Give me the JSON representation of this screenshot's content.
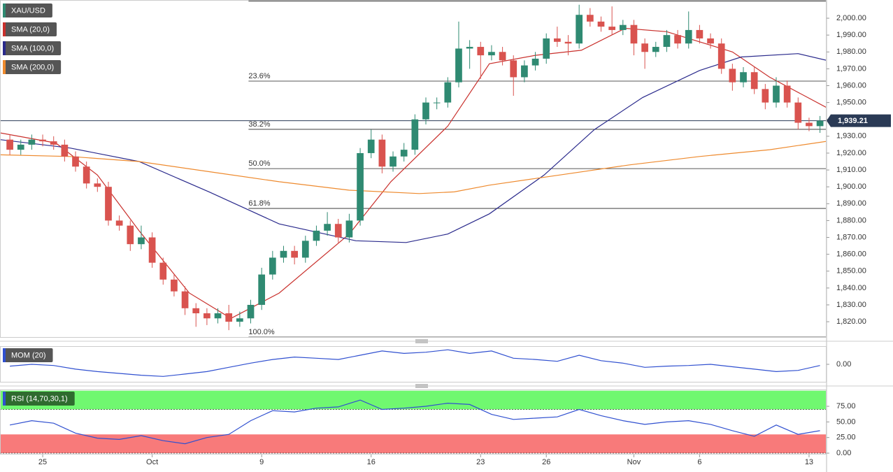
{
  "chart_data": [
    {
      "type": "candlestick",
      "name": "XAU/USD",
      "color_up": "#2f8a72",
      "color_down": "#d9534f",
      "xlim": [
        -1.95,
        35.8
      ],
      "ylim": [
        1810.5,
        2010.8
      ],
      "yticks": [
        {
          "value": 2000,
          "label": "2,000.00"
        },
        {
          "value": 1990,
          "label": "1,990.00"
        },
        {
          "value": 1980,
          "label": "1,980.00"
        },
        {
          "value": 1970,
          "label": "1,970.00"
        },
        {
          "value": 1960,
          "label": "1,960.00"
        },
        {
          "value": 1950,
          "label": "1,950.00"
        },
        {
          "value": 1940,
          "label": "1,940.00"
        },
        {
          "value": 1930,
          "label": "1,930.00"
        },
        {
          "value": 1920,
          "label": "1,920.00"
        },
        {
          "value": 1910,
          "label": "1,910.00"
        },
        {
          "value": 1900,
          "label": "1,900.00"
        },
        {
          "value": 1890,
          "label": "1,890.00"
        },
        {
          "value": 1880,
          "label": "1,880.00"
        },
        {
          "value": 1870,
          "label": "1,870.00"
        },
        {
          "value": 1860,
          "label": "1,860.00"
        },
        {
          "value": 1850,
          "label": "1,850.00"
        },
        {
          "value": 1840,
          "label": "1,840.00"
        },
        {
          "value": 1830,
          "label": "1,830.00"
        },
        {
          "value": 1820,
          "label": "1,820.00"
        }
      ],
      "x": [
        -1.5,
        -1,
        -0.5,
        0,
        0.5,
        1,
        1.5,
        2,
        2.5,
        3,
        3.5,
        4,
        4.5,
        5,
        5.5,
        6,
        6.5,
        7,
        7.5,
        8,
        8.5,
        9,
        9.5,
        10,
        10.5,
        11,
        11.5,
        12,
        12.5,
        13,
        13.5,
        14,
        14.5,
        15,
        15.5,
        16,
        16.5,
        17,
        17.5,
        18,
        18.5,
        19,
        19.5,
        20,
        20.5,
        21,
        21.5,
        22,
        22.5,
        23,
        23.5,
        24,
        24.5,
        25,
        25.5,
        26,
        26.5,
        27,
        27.5,
        28,
        28.5,
        29,
        29.5,
        30,
        30.5,
        31,
        31.5,
        32,
        32.5,
        33,
        33.5,
        34,
        34.5,
        35,
        35.5
      ],
      "ohlc": [
        [
          1928,
          1931,
          1919,
          1922
        ],
        [
          1922,
          1928,
          1919,
          1925
        ],
        [
          1925,
          1931,
          1922,
          1928
        ],
        [
          1928,
          1931,
          1924,
          1927
        ],
        [
          1927,
          1930,
          1922,
          1925
        ],
        [
          1925,
          1928,
          1915,
          1918
        ],
        [
          1918,
          1921,
          1909,
          1912
        ],
        [
          1912,
          1915,
          1899,
          1902
        ],
        [
          1902,
          1905,
          1897,
          1900
        ],
        [
          1900,
          1903,
          1877,
          1880
        ],
        [
          1880,
          1883,
          1874,
          1877
        ],
        [
          1877,
          1880,
          1862,
          1866
        ],
        [
          1866,
          1877,
          1863,
          1870
        ],
        [
          1870,
          1873,
          1852,
          1855
        ],
        [
          1855,
          1858,
          1842,
          1845
        ],
        [
          1845,
          1848,
          1835,
          1838
        ],
        [
          1838,
          1841,
          1824,
          1828
        ],
        [
          1828,
          1831,
          1817,
          1825
        ],
        [
          1825,
          1828,
          1818,
          1822
        ],
        [
          1822,
          1828,
          1819,
          1825
        ],
        [
          1825,
          1830,
          1815,
          1820
        ],
        [
          1820,
          1826,
          1817,
          1822
        ],
        [
          1822,
          1833,
          1819,
          1830
        ],
        [
          1830,
          1852,
          1827,
          1848
        ],
        [
          1848,
          1862,
          1845,
          1858
        ],
        [
          1858,
          1865,
          1855,
          1862
        ],
        [
          1862,
          1865,
          1854,
          1858
        ],
        [
          1858,
          1871,
          1855,
          1868
        ],
        [
          1868,
          1877,
          1865,
          1874
        ],
        [
          1874,
          1885,
          1871,
          1878
        ],
        [
          1878,
          1881,
          1867,
          1870
        ],
        [
          1870,
          1884,
          1867,
          1880
        ],
        [
          1880,
          1923,
          1877,
          1920
        ],
        [
          1920,
          1934,
          1917,
          1928
        ],
        [
          1928,
          1931,
          1908,
          1912
        ],
        [
          1912,
          1921,
          1909,
          1918
        ],
        [
          1918,
          1926,
          1915,
          1922
        ],
        [
          1922,
          1943,
          1919,
          1940
        ],
        [
          1940,
          1953,
          1937,
          1950
        ],
        [
          1950,
          1953,
          1946,
          1950
        ],
        [
          1950,
          1965,
          1947,
          1962
        ],
        [
          1962,
          1998,
          1959,
          1982
        ],
        [
          1982,
          1987,
          1970,
          1983
        ],
        [
          1983,
          1986,
          1964,
          1978
        ],
        [
          1978,
          1984,
          1975,
          1980
        ],
        [
          1980,
          1983,
          1972,
          1975
        ],
        [
          1975,
          1978,
          1954,
          1965
        ],
        [
          1965,
          1975,
          1962,
          1972
        ],
        [
          1972,
          1980,
          1969,
          1976
        ],
        [
          1976,
          1991,
          1973,
          1988
        ],
        [
          1988,
          1995,
          1983,
          1986
        ],
        [
          1986,
          1990,
          1978,
          1985
        ],
        [
          1985,
          2008,
          1982,
          2002
        ],
        [
          2002,
          2006,
          1995,
          1998
        ],
        [
          1998,
          2001,
          1992,
          1995
        ],
        [
          1995,
          2007,
          1990,
          1993
        ],
        [
          1993,
          1999,
          1990,
          1996
        ],
        [
          1996,
          1999,
          1978,
          1985
        ],
        [
          1985,
          1988,
          1970,
          1980
        ],
        [
          1980,
          1986,
          1977,
          1983
        ],
        [
          1983,
          1993,
          1980,
          1990
        ],
        [
          1990,
          1993,
          1982,
          1985
        ],
        [
          1985,
          2004,
          1982,
          1993
        ],
        [
          1993,
          1996,
          1985,
          1988
        ],
        [
          1988,
          1991,
          1982,
          1985
        ],
        [
          1985,
          1988,
          1967,
          1970
        ],
        [
          1970,
          1973,
          1957,
          1962
        ],
        [
          1962,
          1971,
          1959,
          1968
        ],
        [
          1968,
          1971,
          1955,
          1958
        ],
        [
          1958,
          1961,
          1946,
          1950
        ],
        [
          1950,
          1965,
          1947,
          1960
        ],
        [
          1960,
          1963,
          1947,
          1950
        ],
        [
          1950,
          1953,
          1934,
          1938
        ],
        [
          1938,
          1941,
          1933,
          1936
        ],
        [
          1936,
          1942,
          1932,
          1939.21
        ]
      ],
      "series": [
        {
          "name": "SMA (20,0)",
          "color": "#c9302c",
          "x": [
            -1.95,
            0.6,
            2.5,
            4.4,
            6.7,
            8.6,
            10.8,
            14,
            15.9,
            18.5,
            20.4,
            22.5,
            24.6,
            26.6,
            28.5,
            30,
            31.5,
            33.2,
            35.8
          ],
          "values": [
            1932,
            1926,
            1907,
            1874,
            1837,
            1822,
            1837,
            1872,
            1903,
            1936,
            1973,
            1978,
            1981,
            1994,
            1992,
            1986,
            1980,
            1965,
            1947
          ]
        },
        {
          "name": "SMA (100,0)",
          "color": "#2a2a8c",
          "x": [
            -1.95,
            1.25,
            4.4,
            7.6,
            10.8,
            14.3,
            16.6,
            18.5,
            20.4,
            22.9,
            25.2,
            27.4,
            30,
            31.9,
            34.5,
            35.8
          ],
          "values": [
            1928,
            1923,
            1915,
            1897,
            1878,
            1868,
            1867,
            1872,
            1884,
            1907,
            1934,
            1953,
            1969,
            1977,
            1979,
            1975
          ]
        },
        {
          "name": "SMA (200,0)",
          "color": "#ee8a2e",
          "x": [
            -1.95,
            1.25,
            4.4,
            7.6,
            10.8,
            14,
            17.2,
            18.8,
            20.4,
            23.6,
            26.8,
            30,
            33.2,
            35.8
          ],
          "values": [
            1919,
            1918,
            1915,
            1909,
            1903,
            1898,
            1896,
            1897,
            1901,
            1907,
            1913,
            1918,
            1922,
            1927
          ]
        }
      ],
      "fib_start": 9.4,
      "fib_levels": [
        {
          "value": 2010.2
        },
        {
          "value": 1962.7,
          "label": "23.6%"
        },
        {
          "value": 1934.1,
          "label": "38.2%"
        },
        {
          "value": 1910.8,
          "label": "50.0%"
        },
        {
          "value": 1887.2,
          "label": "61.8%"
        },
        {
          "value": 1810.9,
          "label": "100.0%"
        }
      ],
      "last_price": {
        "value": 1939.21,
        "label": "1,939.21"
      }
    },
    {
      "type": "line",
      "title": "MOM (20)",
      "xlim": [
        -1.95,
        35.8
      ],
      "ylim": [
        -30,
        30
      ],
      "yticks": [
        {
          "value": 0,
          "label": "0.00"
        }
      ],
      "series": [
        {
          "color": "#3050d0",
          "x": [
            -1.5,
            -0.5,
            0.5,
            1.5,
            2.5,
            3.5,
            4.5,
            5.5,
            6.5,
            7.5,
            8.5,
            9.5,
            10.5,
            11.5,
            12.5,
            13.5,
            14.5,
            15.5,
            16.5,
            17.5,
            18.5,
            19.5,
            20.5,
            21.5,
            22.5,
            23.5,
            24.5,
            25.5,
            26.5,
            27.5,
            28.5,
            29.5,
            30.5,
            31.5,
            32.5,
            33.5,
            34.5,
            35.5
          ],
          "values": [
            -3,
            0,
            -2,
            -8,
            -12,
            -15,
            -18,
            -20,
            -16,
            -12,
            -5,
            2,
            8,
            12,
            10,
            8,
            15,
            22,
            18,
            20,
            24,
            18,
            22,
            10,
            8,
            5,
            15,
            6,
            2,
            -5,
            -3,
            -2,
            0,
            -4,
            -8,
            -12,
            -10,
            -2
          ]
        }
      ]
    },
    {
      "type": "line",
      "title": "RSI (14,70,30,1)",
      "xlim": [
        -1.95,
        35.8
      ],
      "ylim": [
        -2.2,
        101.9
      ],
      "yticks": [
        {
          "value": 75,
          "label": "75.00"
        },
        {
          "value": 50,
          "label": "50.00"
        },
        {
          "value": 25,
          "label": "25.00"
        },
        {
          "value": 0,
          "label": "0.00"
        }
      ],
      "bands": [
        {
          "from": 70,
          "to": 100,
          "color": "#70f870"
        },
        {
          "from": 0,
          "to": 30,
          "color": "#f87a7a"
        }
      ],
      "series": [
        {
          "color": "#3050d0",
          "x": [
            -1.5,
            -0.5,
            0.5,
            1.5,
            2.5,
            3.5,
            4.5,
            5.5,
            6.5,
            7.5,
            8.5,
            9.5,
            10.5,
            11.5,
            12.5,
            13.5,
            14.5,
            15.5,
            16.5,
            17.5,
            18.5,
            19.5,
            20.5,
            21.5,
            22.5,
            23.5,
            24.5,
            25.5,
            26.5,
            27.5,
            28.5,
            29.5,
            30.5,
            31.5,
            32.5,
            33.5,
            34.5,
            35.5
          ],
          "values": [
            45,
            52,
            48,
            32,
            24,
            22,
            28,
            20,
            15,
            25,
            30,
            52,
            68,
            66,
            72,
            74,
            85,
            70,
            72,
            75,
            80,
            78,
            62,
            54,
            56,
            58,
            70,
            60,
            52,
            46,
            50,
            52,
            46,
            36,
            27,
            45,
            30,
            36
          ]
        }
      ],
      "xticks": [
        {
          "value": 0,
          "label": "25"
        },
        {
          "value": 5,
          "label": "Oct"
        },
        {
          "value": 10,
          "label": "9"
        },
        {
          "value": 15,
          "label": "16"
        },
        {
          "value": 20,
          "label": "23"
        },
        {
          "value": 23,
          "label": "26"
        },
        {
          "value": 27,
          "label": "Nov"
        },
        {
          "value": 30,
          "label": "6"
        },
        {
          "value": 35,
          "label": "13"
        }
      ]
    }
  ]
}
